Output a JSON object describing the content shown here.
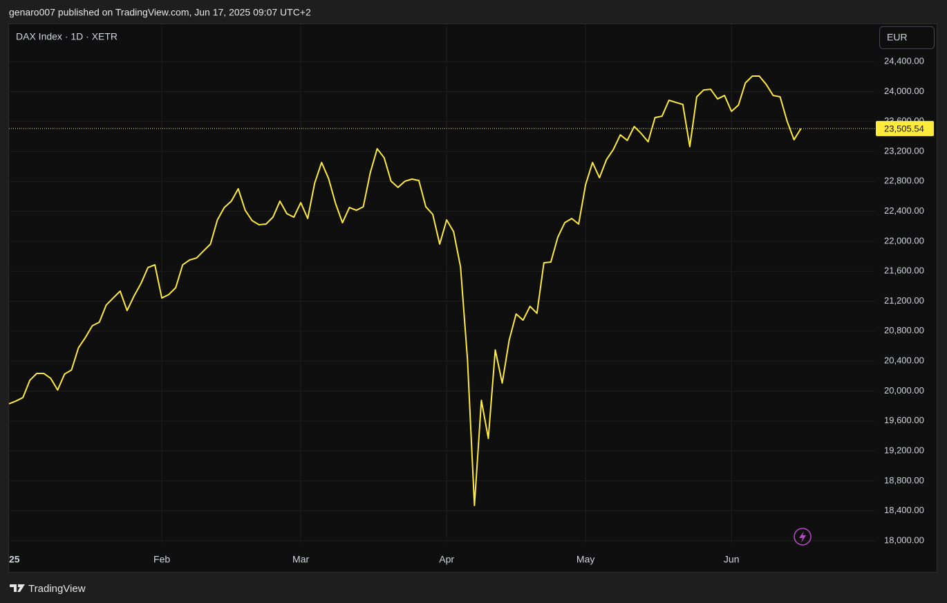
{
  "header": "genaro007 published on TradingView.com, Jun 17, 2025 09:07 UTC+2",
  "brand": "TradingView",
  "chart_data": {
    "type": "line",
    "title": "DAX Index · 1D · XETR",
    "currency": "EUR",
    "color": "#ffeb3b",
    "grid": true,
    "categories": [
      "25",
      null,
      null,
      null,
      null,
      null,
      null,
      null,
      null,
      null,
      null,
      null,
      null,
      null,
      null,
      null,
      null,
      null,
      null,
      null,
      null,
      null,
      "Feb",
      null,
      null,
      null,
      null,
      null,
      null,
      null,
      null,
      null,
      null,
      null,
      null,
      null,
      null,
      null,
      null,
      null,
      null,
      null,
      "Mar",
      null,
      null,
      null,
      null,
      null,
      null,
      null,
      null,
      null,
      null,
      null,
      null,
      null,
      null,
      null,
      null,
      null,
      null,
      null,
      null,
      "Apr",
      null,
      null,
      null,
      null,
      null,
      null,
      null,
      null,
      null,
      null,
      null,
      null,
      null,
      null,
      null,
      null,
      null,
      null,
      null,
      "May",
      null,
      null,
      null,
      null,
      null,
      null,
      null,
      null,
      null,
      null,
      null,
      null,
      null,
      null,
      null,
      null,
      null,
      null,
      null,
      null,
      "Jun",
      null,
      null,
      null,
      null,
      null,
      null,
      null,
      null,
      null,
      null
    ],
    "values": [
      19829,
      19866,
      19912,
      20143,
      20235,
      20235,
      20170,
      20013,
      20226,
      20281,
      20577,
      20715,
      20872,
      20918,
      21149,
      21242,
      21334,
      21075,
      21269,
      21436,
      21648,
      21685,
      21242,
      21288,
      21380,
      21685,
      21750,
      21777,
      21870,
      21962,
      22285,
      22451,
      22535,
      22701,
      22414,
      22276,
      22220,
      22230,
      22322,
      22535,
      22368,
      22322,
      22516,
      22304,
      22775,
      23052,
      22839,
      22507,
      22248,
      22451,
      22414,
      22461,
      22913,
      23236,
      23116,
      22802,
      22719,
      22802,
      22830,
      22812,
      22461,
      22359,
      21962,
      22285,
      22128,
      21657,
      20419,
      18471,
      19875,
      19367,
      20549,
      20106,
      20678,
      21029,
      20946,
      21131,
      21038,
      21713,
      21722,
      22054,
      22248,
      22304,
      22230,
      22756,
      23052,
      22849,
      23089,
      23227,
      23421,
      23347,
      23532,
      23440,
      23329,
      23652,
      23670,
      23883,
      23855,
      23827,
      23264,
      23929,
      24021,
      24030,
      23901,
      23947,
      23735,
      23818,
      24114,
      24206,
      24206,
      24095,
      23947,
      23929,
      23606,
      23356,
      23505.54
    ],
    "last_price": {
      "value": 23505.54,
      "label": "23,505.54"
    },
    "ylim": [
      17972,
      24899
    ],
    "yticks": [
      {
        "value": 18000,
        "label": "18,000.00"
      },
      {
        "value": 18400,
        "label": "18,400.00"
      },
      {
        "value": 18800,
        "label": "18,800.00"
      },
      {
        "value": 19200,
        "label": "19,200.00"
      },
      {
        "value": 19600,
        "label": "19,600.00"
      },
      {
        "value": 20000,
        "label": "20,000.00"
      },
      {
        "value": 20400,
        "label": "20,400.00"
      },
      {
        "value": 20800,
        "label": "20,800.00"
      },
      {
        "value": 21200,
        "label": "21,200.00"
      },
      {
        "value": 21600,
        "label": "21,600.00"
      },
      {
        "value": 22000,
        "label": "22,000.00"
      },
      {
        "value": 22400,
        "label": "22,400.00"
      },
      {
        "value": 22800,
        "label": "22,800.00"
      },
      {
        "value": 23200,
        "label": "23,200.00"
      },
      {
        "value": 23600,
        "label": "23,600.00"
      },
      {
        "value": 24000,
        "label": "24,000.00"
      },
      {
        "value": 24400,
        "label": "24,400.00"
      }
    ]
  }
}
